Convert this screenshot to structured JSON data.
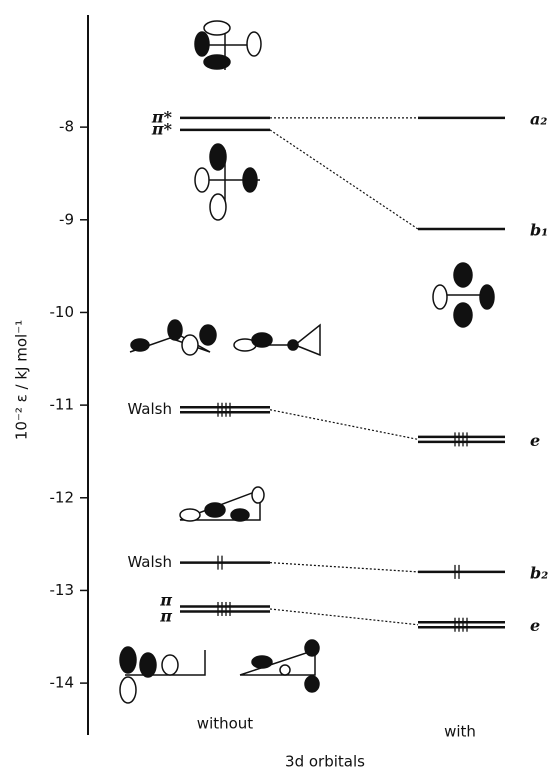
{
  "diagram": {
    "axis": {
      "label": "10⁻² ε / kJ mol⁻¹",
      "ylim": [
        -14.56,
        -6.79
      ],
      "yticks": [
        -8,
        -9,
        -10,
        -11,
        -12,
        -13,
        -14
      ]
    },
    "columns": {
      "without": "without",
      "with": "with",
      "caption": "3d orbitals"
    },
    "levels": [
      {
        "without": -7.9,
        "with": -7.9,
        "left_labels": [
          "π*"
        ],
        "right_label": "a₂",
        "degenerate": false,
        "electrons": 0
      },
      {
        "without": -8.03,
        "with": -9.1,
        "left_labels": [
          "π*"
        ],
        "right_label": "b₁",
        "degenerate": false,
        "electrons": 0
      },
      {
        "without": -11.05,
        "with": -11.37,
        "left_labels": [
          "Walsh"
        ],
        "right_label": "e",
        "degenerate": true,
        "electrons": 4
      },
      {
        "without": -12.7,
        "with": -12.8,
        "left_labels": [
          "Walsh"
        ],
        "right_label": "b₂",
        "degenerate": false,
        "electrons": 2
      },
      {
        "without": -13.2,
        "with": -13.37,
        "left_labels": [
          "π",
          "π"
        ],
        "right_label": "e",
        "degenerate": true,
        "electrons": 4
      }
    ]
  }
}
